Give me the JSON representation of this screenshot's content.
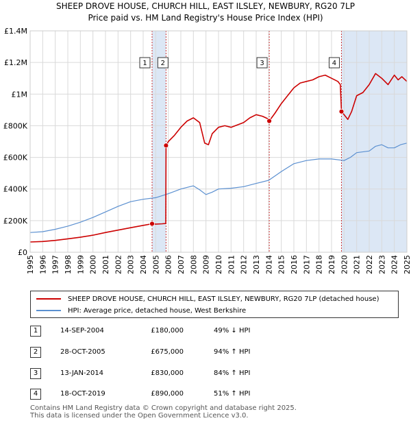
{
  "title_line1": "SHEEP DROVE HOUSE, CHURCH HILL, EAST ILSLEY, NEWBURY, RG20 7LP",
  "title_line2": "Price paid vs. HM Land Registry's House Price Index (HPI)",
  "legend": {
    "property_label": "SHEEP DROVE HOUSE, CHURCH HILL, EAST ILSLEY, NEWBURY, RG20 7LP (detached house)",
    "hpi_label": "HPI: Average price, detached house, West Berkshire"
  },
  "transactions": [
    {
      "num": "1",
      "date": "14-SEP-2004",
      "price": "£180,000",
      "hpi": "49% ↓ HPI"
    },
    {
      "num": "2",
      "date": "28-OCT-2005",
      "price": "£675,000",
      "hpi": "94% ↑ HPI"
    },
    {
      "num": "3",
      "date": "13-JAN-2014",
      "price": "£830,000",
      "hpi": "84% ↑ HPI"
    },
    {
      "num": "4",
      "date": "18-OCT-2019",
      "price": "£890,000",
      "hpi": "51% ↑ HPI"
    }
  ],
  "footer_line1": "Contains HM Land Registry data © Crown copyright and database right 2025.",
  "footer_line2": "This data is licensed under the Open Government Licence v3.0.",
  "colors": {
    "property": "#cc0000",
    "hpi": "#5a8fd0",
    "shade": "#dce7f5",
    "grid": "#d9d9d9",
    "marker_line": "#cc3333"
  },
  "chart_data": {
    "type": "line",
    "title": "Price paid vs. HM Land Registry's House Price Index (HPI)",
    "xlim": [
      1995,
      2025
    ],
    "ylim": [
      0,
      1400000
    ],
    "x_ticks": [
      1995,
      1996,
      1997,
      1998,
      1999,
      2000,
      2001,
      2002,
      2003,
      2004,
      2005,
      2006,
      2007,
      2008,
      2009,
      2010,
      2011,
      2012,
      2013,
      2014,
      2015,
      2016,
      2017,
      2018,
      2019,
      2020,
      2021,
      2022,
      2023,
      2024,
      2025
    ],
    "y_ticks": [
      0,
      200000,
      400000,
      600000,
      800000,
      1000000,
      1200000,
      1400000
    ],
    "y_tick_labels": [
      "£0",
      "£200K",
      "£400K",
      "£600K",
      "£800K",
      "£1M",
      "£1.2M",
      "£1.4M"
    ],
    "shaded_ranges": [
      [
        2004.71,
        2005.82
      ],
      [
        2019.79,
        2025.0
      ]
    ],
    "sales": [
      {
        "label": "1",
        "x": 2004.71,
        "y": 180000
      },
      {
        "label": "2",
        "x": 2005.82,
        "y": 675000
      },
      {
        "label": "3",
        "x": 2014.04,
        "y": 830000
      },
      {
        "label": "4",
        "x": 2019.79,
        "y": 890000
      }
    ],
    "series": [
      {
        "name": "SHEEP DROVE HOUSE, CHURCH HILL, EAST ILSLEY, NEWBURY, RG20 7LP (detached house)",
        "x": [
          1995,
          1996,
          1997,
          1998,
          1999,
          2000,
          2001,
          2002,
          2003,
          2004,
          2004.71,
          2005.0,
          2005.5,
          2005.8,
          2005.82,
          2006,
          2006.5,
          2007,
          2007.5,
          2008,
          2008.5,
          2008.9,
          2009.2,
          2009.5,
          2010,
          2010.5,
          2011,
          2011.5,
          2012,
          2012.5,
          2013,
          2013.5,
          2013.9,
          2014.04,
          2014.5,
          2015,
          2015.5,
          2016,
          2016.5,
          2017,
          2017.5,
          2018,
          2018.5,
          2019,
          2019.5,
          2019.7,
          2019.79,
          2020.0,
          2020.3,
          2020.6,
          2020.8,
          2021.0,
          2021.5,
          2022,
          2022.5,
          2023,
          2023.5,
          2024,
          2024.3,
          2024.6,
          2025
        ],
        "y": [
          65000,
          68000,
          75000,
          85000,
          95000,
          108000,
          125000,
          140000,
          155000,
          170000,
          180000,
          178000,
          180000,
          182000,
          675000,
          700000,
          740000,
          790000,
          830000,
          850000,
          820000,
          690000,
          680000,
          750000,
          790000,
          800000,
          790000,
          805000,
          820000,
          850000,
          870000,
          860000,
          845000,
          830000,
          880000,
          940000,
          990000,
          1040000,
          1070000,
          1080000,
          1090000,
          1110000,
          1120000,
          1100000,
          1080000,
          1060000,
          890000,
          870000,
          840000,
          890000,
          940000,
          990000,
          1010000,
          1060000,
          1130000,
          1100000,
          1060000,
          1120000,
          1090000,
          1110000,
          1080000
        ]
      },
      {
        "name": "HPI: Average price, detached house, West Berkshire",
        "x": [
          1995,
          1996,
          1997,
          1998,
          1999,
          2000,
          2001,
          2002,
          2003,
          2004,
          2005,
          2006,
          2007,
          2008,
          2008.5,
          2009,
          2009.5,
          2010,
          2011,
          2012,
          2013,
          2014,
          2015,
          2016,
          2017,
          2018,
          2019,
          2020,
          2020.5,
          2021,
          2022,
          2022.5,
          2023,
          2023.5,
          2024,
          2024.5,
          2025
        ],
        "y": [
          125000,
          130000,
          145000,
          165000,
          190000,
          220000,
          255000,
          290000,
          320000,
          335000,
          345000,
          370000,
          400000,
          420000,
          395000,
          365000,
          380000,
          400000,
          405000,
          415000,
          435000,
          455000,
          510000,
          560000,
          580000,
          590000,
          590000,
          580000,
          600000,
          630000,
          640000,
          670000,
          680000,
          660000,
          660000,
          680000,
          690000
        ]
      }
    ]
  }
}
